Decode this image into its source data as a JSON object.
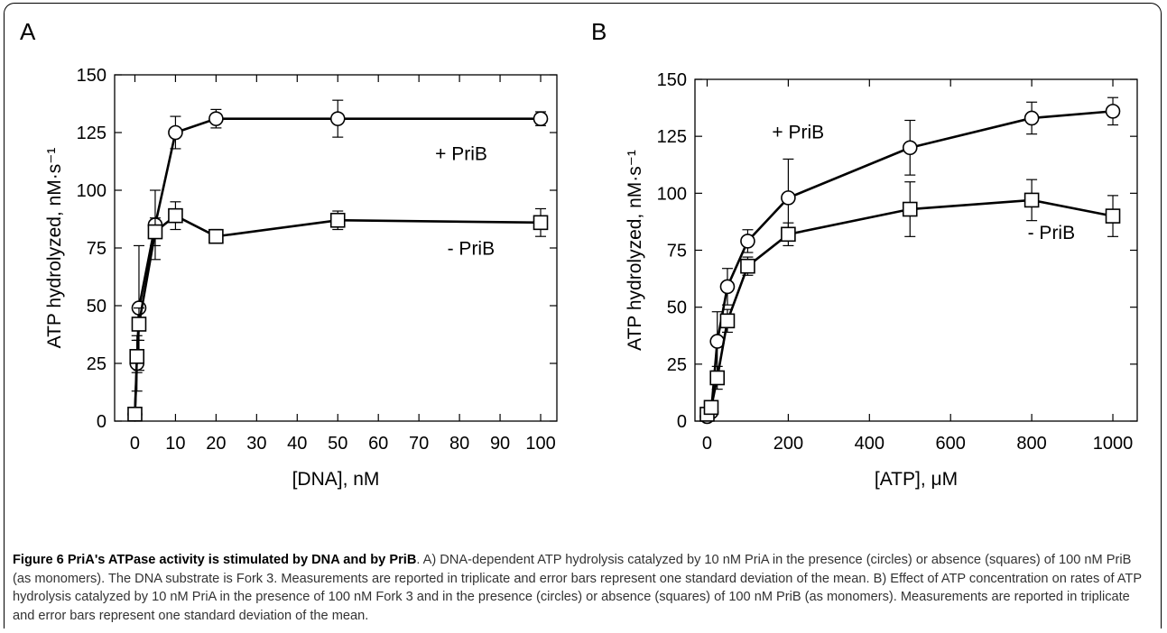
{
  "chart_data": [
    {
      "panel": "A",
      "type": "line",
      "xlabel": "[DNA], nM",
      "ylabel": "ATP hydrolyzed, nM·s⁻¹",
      "xlim": [
        -5,
        104
      ],
      "ylim": [
        0,
        150
      ],
      "xticks": [
        0,
        10,
        20,
        30,
        40,
        50,
        60,
        70,
        80,
        90,
        100
      ],
      "yticks": [
        0,
        25,
        50,
        75,
        100,
        125,
        150
      ],
      "grid": false,
      "series": [
        {
          "name": "+ PriB",
          "marker": "circle",
          "x": [
            0,
            0.5,
            1,
            5,
            10,
            20,
            50,
            100
          ],
          "y": [
            3,
            25,
            49,
            85,
            125,
            131,
            131,
            131
          ],
          "err": [
            0,
            12,
            27,
            15,
            7,
            4,
            8,
            3
          ]
        },
        {
          "name": "- PriB",
          "marker": "square",
          "x": [
            0,
            0.5,
            1,
            5,
            10,
            20,
            50,
            100
          ],
          "y": [
            3,
            28,
            42,
            82,
            89,
            80,
            87,
            86
          ],
          "err": [
            0,
            7,
            7,
            6,
            6,
            3,
            4,
            6
          ]
        }
      ],
      "labels": [
        {
          "text": "+ PriB",
          "x": 74,
          "y": 113
        },
        {
          "text": "- PriB",
          "x": 77,
          "y": 72
        }
      ]
    },
    {
      "panel": "B",
      "type": "line",
      "xlabel": "[ATP], μM",
      "ylabel": "ATP hydrolyzed, nM·s⁻¹",
      "xlim": [
        -30,
        1060
      ],
      "ylim": [
        0,
        150
      ],
      "xticks": [
        0,
        200,
        400,
        600,
        800,
        1000
      ],
      "yticks": [
        0,
        25,
        50,
        75,
        100,
        125,
        150
      ],
      "grid": false,
      "series": [
        {
          "name": "+ PriB",
          "marker": "circle",
          "x": [
            0,
            10,
            25,
            50,
            100,
            200,
            500,
            800,
            1000
          ],
          "y": [
            2,
            4,
            35,
            59,
            79,
            98,
            120,
            133,
            136
          ],
          "err": [
            0,
            0,
            13,
            8,
            5,
            17,
            12,
            7,
            6
          ]
        },
        {
          "name": "- PriB",
          "marker": "square",
          "x": [
            0,
            10,
            25,
            50,
            100,
            200,
            500,
            800,
            1000
          ],
          "y": [
            3,
            6,
            19,
            44,
            68,
            82,
            93,
            97,
            90
          ],
          "err": [
            0,
            0,
            5,
            5,
            4,
            5,
            12,
            9,
            9
          ]
        }
      ],
      "labels": [
        {
          "text": "+ PriB",
          "x": 160,
          "y": 124
        },
        {
          "text": "- PriB",
          "x": 790,
          "y": 80
        }
      ]
    }
  ],
  "panel_a_letter": "A",
  "panel_b_letter": "B",
  "caption": {
    "title": "Figure 6 PriA's ATPase activity is stimulated by DNA and by PriB",
    "body": ". A) DNA-dependent ATP hydrolysis catalyzed by 10 nM PriA in the presence (circles) or absence (squares) of 100 nM PriB (as monomers). The DNA substrate is Fork 3. Measurements are reported in triplicate and error bars represent one standard deviation of the mean. B) Effect of ATP concentration on rates of ATP hydrolysis catalyzed by 10 nM PriA in the presence of 100 nM Fork 3 and in the presence (circles) or absence (squares) of 100 nM PriB (as monomers). Measurements are reported in triplicate and error bars represent one standard deviation of the mean."
  }
}
